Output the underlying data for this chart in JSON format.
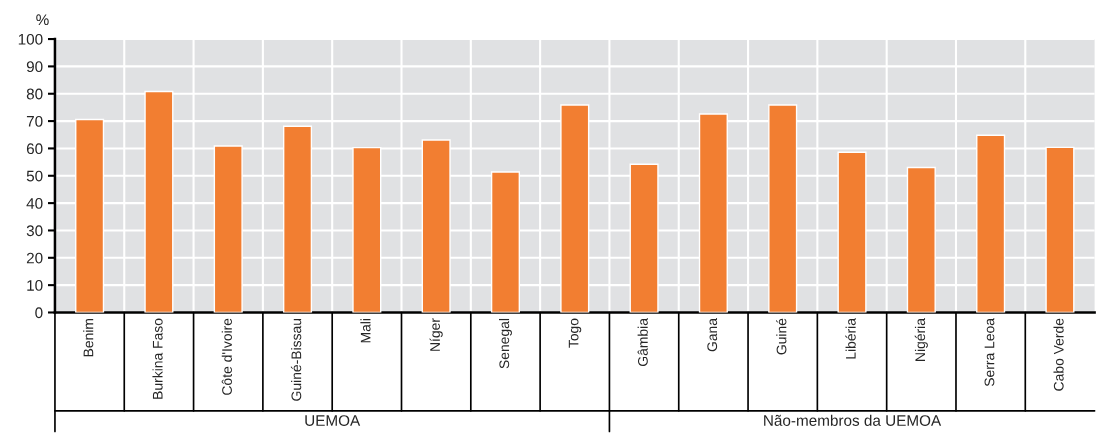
{
  "chart_data": {
    "type": "bar",
    "ylabel": "%",
    "categories": [
      "Benim",
      "Burkina Faso",
      "Côte d'Ivoire",
      "Guiné-Bissau",
      "Mali",
      "Níger",
      "Senegal",
      "Togo",
      "Gâmbia",
      "Gana",
      "Guiné",
      "Libéria",
      "Nigéria",
      "Serra Leoa",
      "Cabo Verde"
    ],
    "values": [
      70.6,
      80.8,
      60.9,
      68.1,
      60.3,
      63.1,
      51.4,
      75.9,
      54.2,
      72.6,
      75.9,
      58.6,
      53.0,
      64.8,
      60.4
    ],
    "color": "#f27e31",
    "ylim": [
      0,
      100
    ],
    "yticks": [
      0,
      10,
      20,
      30,
      40,
      50,
      60,
      70,
      80,
      90,
      100
    ],
    "grid": true,
    "annotations": [
      "UEMOA",
      "Não-membros da UEMOA"
    ]
  }
}
